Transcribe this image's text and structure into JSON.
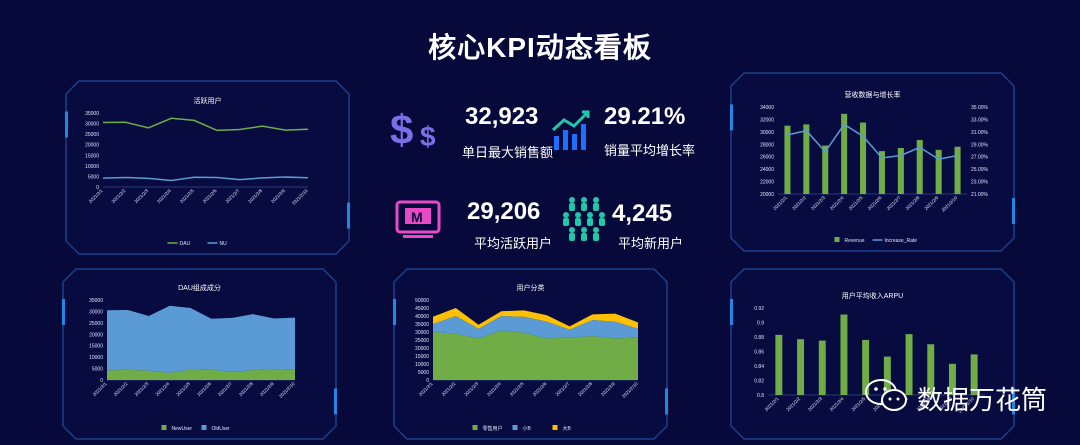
{
  "page_title": "核心KPI动态看板",
  "colors": {
    "background": "#07093a",
    "panel_fill": "#080b40",
    "panel_border": "#1c3f8a",
    "accent": "#1e88e5",
    "green": "#70ad47",
    "blue": "#5b9bd5",
    "yellow": "#ffc000",
    "purple": "#7b6ee6",
    "magenta": "#e84ac5",
    "teal": "#1fc8a8"
  },
  "kpis": [
    {
      "value": "32,923",
      "label": "单日最大销售额",
      "icon": "dollar-icon"
    },
    {
      "value": "29.21%",
      "label": "销量平均增长率",
      "icon": "growth-chart-icon"
    },
    {
      "value": "29,206",
      "label": "平均活跃用户",
      "icon": "monitor-icon"
    },
    {
      "value": "4,245",
      "label": "平均新用户",
      "icon": "people-group-icon"
    }
  ],
  "watermark": {
    "text": "数据万花筒",
    "icon": "wechat-icon"
  },
  "chart_data": [
    {
      "id": "active-users",
      "type": "line",
      "title": "活跃用户",
      "categories": [
        "2021/2/1",
        "2021/2/2",
        "2021/2/3",
        "2021/2/4",
        "2021/2/5",
        "2021/2/6",
        "2021/2/7",
        "2021/2/8",
        "2021/2/9",
        "2021/2/10"
      ],
      "ylim": [
        0,
        35000
      ],
      "yticks": [
        "0",
        "5000",
        "10000",
        "15000",
        "20000",
        "25000",
        "30000",
        "35000"
      ],
      "series": [
        {
          "name": "DAU",
          "color": "#70ad47",
          "values": [
            30500,
            30600,
            28000,
            32500,
            31500,
            26800,
            27200,
            28800,
            26900,
            27300
          ]
        },
        {
          "name": "NU",
          "color": "#5b9bd5",
          "values": [
            4200,
            4500,
            4100,
            3100,
            4600,
            4500,
            3500,
            4300,
            4700,
            4400
          ]
        }
      ],
      "legend": "bottom"
    },
    {
      "id": "revenue-growth",
      "type": "bar+line",
      "title": "营收数据与增长率",
      "categories": [
        "2021/2/1",
        "2021/2/2",
        "2021/2/3",
        "2021/2/4",
        "2021/2/5",
        "2021/2/6",
        "2021/2/7",
        "2021/2/8",
        "2021/2/9",
        "2021/2/10"
      ],
      "ylim": [
        20000,
        34000
      ],
      "yticks": [
        "20000",
        "22000",
        "24000",
        "26000",
        "28000",
        "30000",
        "32000",
        "34000"
      ],
      "y2lim": [
        0.21,
        0.35
      ],
      "y2ticks": [
        "21.00%",
        "23.00%",
        "25.00%",
        "27.00%",
        "29.00%",
        "31.00%",
        "33.00%",
        "35.00%"
      ],
      "series": [
        {
          "name": "Revenue",
          "type": "bar",
          "color": "#70ad47",
          "values": [
            31000,
            31200,
            27800,
            32900,
            31500,
            26900,
            27400,
            28700,
            27100,
            27600
          ]
        },
        {
          "name": "Increase_Rate",
          "type": "line",
          "axis": "right",
          "color": "#5b9bd5",
          "values": [
            0.305,
            0.312,
            0.278,
            0.322,
            0.303,
            0.268,
            0.272,
            0.285,
            0.266,
            0.272
          ]
        }
      ],
      "legend": "bottom"
    },
    {
      "id": "dau-composition",
      "type": "area",
      "title": "DAU组成成分",
      "categories": [
        "2021/2/1",
        "2021/2/2",
        "2021/2/3",
        "2021/2/4",
        "2021/2/5",
        "2021/2/6",
        "2021/2/7",
        "2021/2/8",
        "2021/2/9",
        "2021/2/10"
      ],
      "ylim": [
        0,
        35000
      ],
      "yticks": [
        "0",
        "5000",
        "10000",
        "15000",
        "20000",
        "25000",
        "30000",
        "35000"
      ],
      "stacked": true,
      "series": [
        {
          "name": "NewUser",
          "color": "#70ad47",
          "values": [
            4200,
            4500,
            4100,
            3100,
            4600,
            4500,
            3500,
            4300,
            4700,
            4400
          ]
        },
        {
          "name": "OldUser",
          "color": "#5b9bd5",
          "values": [
            26300,
            26100,
            23900,
            29400,
            26900,
            22300,
            23700,
            24500,
            22200,
            22900
          ]
        }
      ],
      "legend": "bottom"
    },
    {
      "id": "user-category",
      "type": "area",
      "title": "用户分类",
      "categories": [
        "2021/2/1",
        "2021/2/2",
        "2021/2/3",
        "2021/2/4",
        "2021/2/5",
        "2021/2/6",
        "2021/2/7",
        "2021/2/8",
        "2021/2/9",
        "2021/2/10"
      ],
      "ylim": [
        0,
        50000
      ],
      "yticks": [
        "0",
        "5000",
        "10000",
        "15000",
        "20000",
        "25000",
        "30000",
        "35000",
        "40000",
        "45000",
        "50000"
      ],
      "stacked": true,
      "series": [
        {
          "name": "零售用户",
          "color": "#70ad47",
          "values": [
            30000,
            29000,
            26000,
            31000,
            29500,
            26000,
            26500,
            27500,
            26000,
            26500
          ]
        },
        {
          "name": "小B",
          "color": "#5b9bd5",
          "values": [
            5000,
            11000,
            6000,
            9000,
            10000,
            10500,
            5000,
            10000,
            10500,
            5500
          ]
        },
        {
          "name": "大B",
          "color": "#ffc000",
          "values": [
            4500,
            5000,
            2500,
            3000,
            4000,
            4000,
            2000,
            3500,
            5000,
            4000
          ]
        }
      ],
      "legend": "bottom"
    },
    {
      "id": "arpu",
      "type": "bar",
      "title": "用户平均收入ARPU",
      "categories": [
        "2021/2/1",
        "2021/2/2",
        "2021/2/3",
        "2021/2/4",
        "2021/2/5",
        "2021/2/6",
        "2021/2/7",
        "2021/2/8",
        "2021/2/9",
        "2021/2/10"
      ],
      "ylim": [
        0.8,
        0.92
      ],
      "yticks": [
        "0.8",
        "0.82",
        "0.84",
        "0.86",
        "0.88",
        "0.9",
        "0.92"
      ],
      "series": [
        {
          "name": "ARPU",
          "color": "#70ad47",
          "values": [
            0.883,
            0.877,
            0.875,
            0.911,
            0.876,
            0.853,
            0.884,
            0.87,
            0.843,
            0.856
          ]
        }
      ]
    }
  ]
}
